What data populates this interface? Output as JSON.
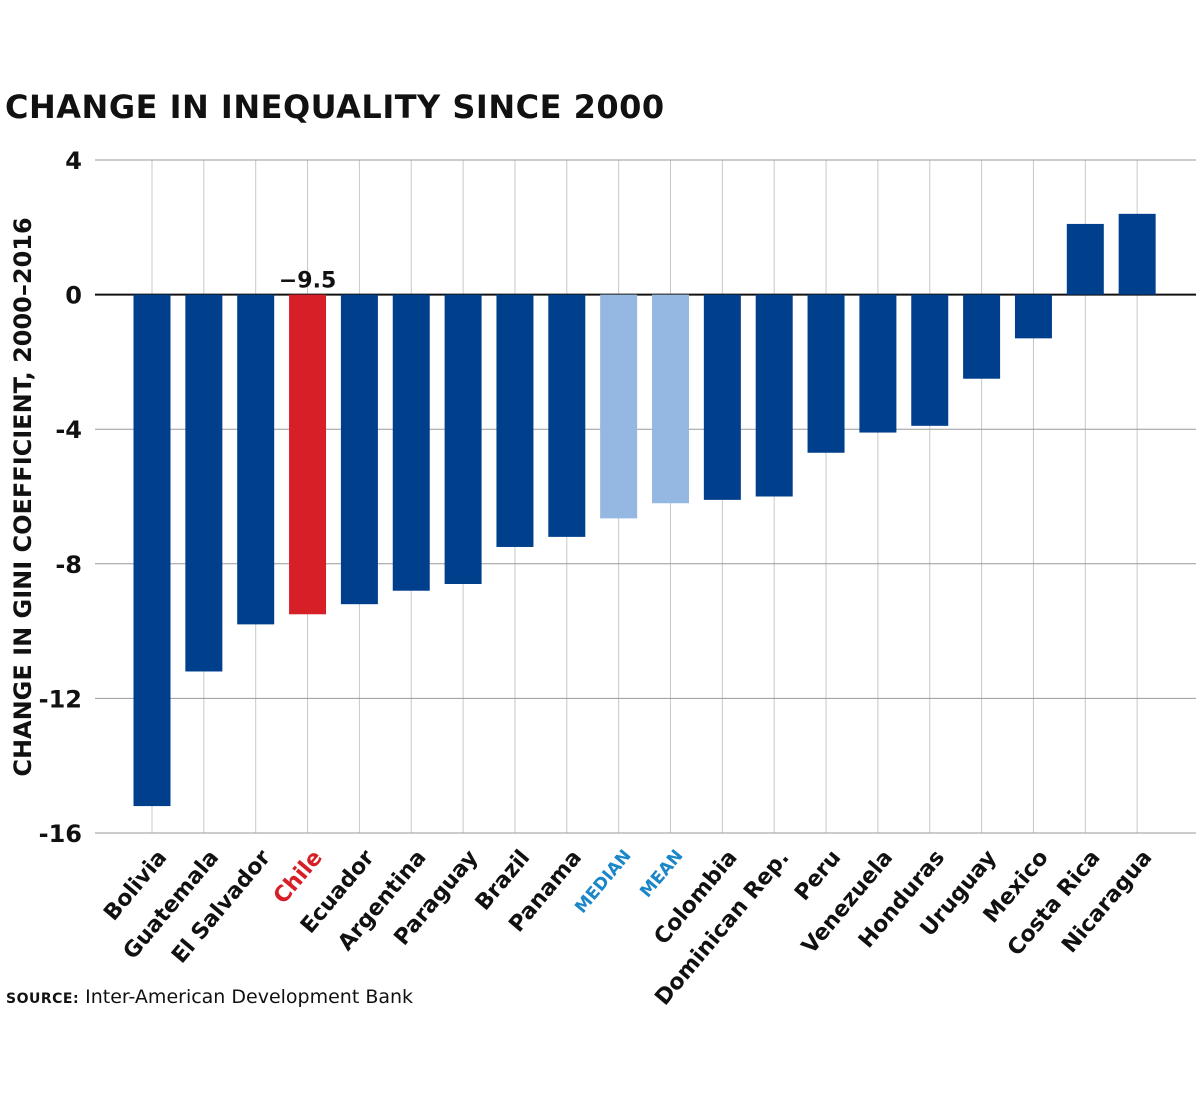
{
  "chart_data": {
    "type": "bar",
    "title": "CHANGE IN INEQUALITY SINCE 2000",
    "ylabel": "CHANGE IN GINI COEFFICIENT, 2000–2016",
    "xlabel": "",
    "ylim": [
      -16,
      4
    ],
    "yticks": [
      4,
      0,
      -4,
      -8,
      -12,
      -16
    ],
    "ytick_labels": [
      "4",
      "0",
      "-4",
      "-8",
      "-12",
      "-16"
    ],
    "grid": true,
    "categories": [
      "Bolivia",
      "Guatemala",
      "El Salvador",
      "Chile",
      "Ecuador",
      "Argentina",
      "Paraguay",
      "Brazil",
      "Panama",
      "MEDIAN",
      "MEAN",
      "Colombia",
      "Dominican Rep.",
      "Peru",
      "Venezuela",
      "Honduras",
      "Uruguay",
      "Mexico",
      "Costa Rica",
      "Nicaragua"
    ],
    "values": [
      -15.2,
      -11.2,
      -9.8,
      -9.5,
      -9.2,
      -8.8,
      -8.6,
      -7.5,
      -7.2,
      -6.65,
      -6.2,
      -6.1,
      -6.0,
      -4.7,
      -4.1,
      -3.9,
      -2.5,
      -1.3,
      2.1,
      2.4
    ],
    "highlight_label": "−9.5",
    "colors": {
      "default": "#003f8c",
      "highlight": "#d71f27",
      "summary": "#94b8e1",
      "summary_label": "#1b86c8",
      "highlight_label": "#d71f27",
      "text": "#111111"
    },
    "bar_kind": [
      "default",
      "default",
      "default",
      "highlight",
      "default",
      "default",
      "default",
      "default",
      "default",
      "summary",
      "summary",
      "default",
      "default",
      "default",
      "default",
      "default",
      "default",
      "default",
      "default",
      "default"
    ]
  },
  "source": {
    "label": "SOURCE:",
    "text": " Inter-American Development Bank"
  }
}
